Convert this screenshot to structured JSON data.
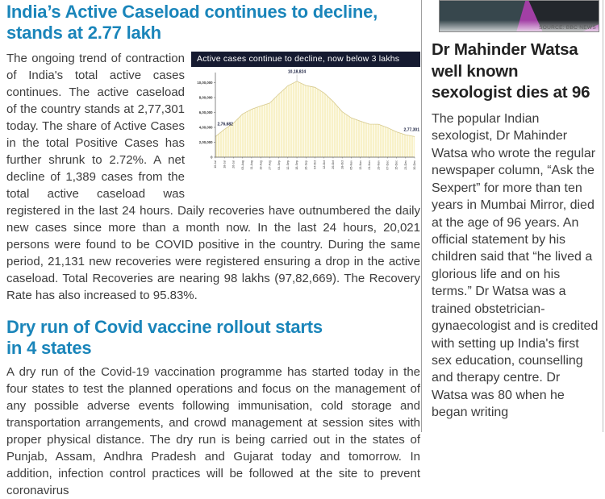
{
  "left": {
    "article1": {
      "headline": "India’s Active Caseload continues to decline, stands at 2.77 lakh",
      "body": "The ongoing trend of contraction of India's total active cases continues. The active caseload of the country stands at 2,77,301 today. The share of Active Cases in the total Positive Cases has further shrunk to 2.72%. A net decline of 1,389 cases from the total active caseload was registered in the last 24 hours. Daily recoveries have outnumbered the daily new cases since more than a month now. In the last 24 hours, 20,021 persons were found to be COVID positive in the country. During the same period, 21,131 new recoveries were registered ensuring a drop in the active caseload. Total Recoveries are nearing 98 lakhs (97,82,669). The Recovery Rate has also increased to 95.83%."
    },
    "article2": {
      "headline_lines": [
        "Dry run of Covid vaccine rollout starts",
        "in 4 states"
      ],
      "body": "A dry run of the Covid-19 vaccination programme has started today in the four states to test the planned operations and focus on the management of any possible adverse events following immunisation, cold storage and transportation arrangements, and crowd management at session sites with proper physical distance. The dry run is being carried out in the states of Punjab, Assam, Andhra Pradesh and Gujarat today and tomorrow. In addition, infection control practices will be followed at the site to prevent coronavirus"
    }
  },
  "right": {
    "image_source": "SOURCE: BBC NEWS",
    "headline": "Dr Mahinder Watsa well known sexologist dies at 96",
    "body": "The popular Indian sexologist, Dr Mahinder Watsa who wrote the regular newspaper column, “Ask the Sexpert” for more than ten years in Mumbai Mirror, died at the age of 96 years. An official statement by his children said that “he lived a glorious life and on his terms.” Dr Watsa was a trained obstetrician-gynaecologist and is credited with setting up India's first sex education, counselling and therapy centre. Dr Watsa was 80 when he began writing"
  },
  "chart_data": {
    "type": "area",
    "title": "Active cases continue to decline, now below 3 lakhs",
    "categories": [
      "10-Jul",
      "18-Jul",
      "26-Jul",
      "03-Aug",
      "11-Aug",
      "19-Aug",
      "27-Aug",
      "04-Sep",
      "12-Sep",
      "18-Sep",
      "26-Sep",
      "04-Oct",
      "12-Oct",
      "20-Oct",
      "28-Oct",
      "05-Nov",
      "13-Nov",
      "21-Nov",
      "29-Nov",
      "07-Dec",
      "15-Dec",
      "23-Dec",
      "30-Dec"
    ],
    "values": [
      276682,
      373379,
      456071,
      579357,
      643948,
      686395,
      725991,
      846395,
      958316,
      1018824,
      961487,
      937625,
      861853,
      748538,
      610803,
      527962,
      484547,
      443486,
      441952,
      396729,
      339820,
      300162,
      277301
    ],
    "ytick_values": [
      0,
      200000,
      400000,
      600000,
      800000,
      1000000
    ],
    "ytick_labels": [
      "0",
      "2,00,000",
      "4,00,000",
      "6,00,000",
      "8,00,000",
      "10,00,000"
    ],
    "ylim": [
      0,
      1060000
    ],
    "annotations": {
      "start": "2,76,682",
      "peak": "10,18,824",
      "end": "2,77,301"
    },
    "legend": "none",
    "grid": false,
    "colors": {
      "area_fill": "#f8f1c8",
      "area_stroke": "#d6c98e",
      "title_bg": "#151a30",
      "title_fg": "#ffffff",
      "annotation": "#1a2040",
      "axis": "#555555"
    }
  },
  "colors": {
    "headline_accent": "#1a85ba",
    "right_headline": "#222222",
    "body_text": "#3d3d3d",
    "divider": "#a0a0a0",
    "photo_bg": "#a23fa5"
  }
}
